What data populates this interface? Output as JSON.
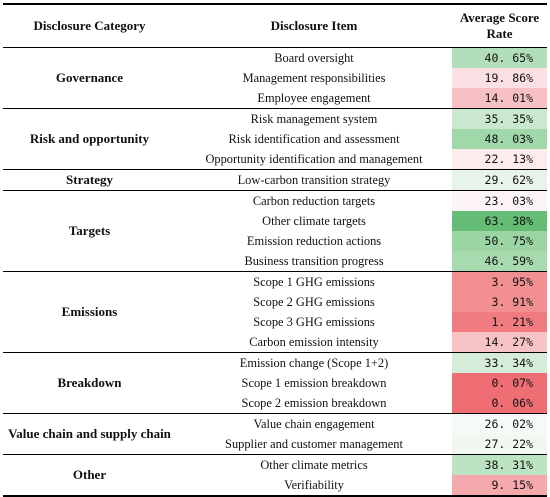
{
  "headers": {
    "category": "Disclosure Category",
    "item": "Disclosure Item",
    "score_line1": "Average Score",
    "score_line2": "Rate"
  },
  "rows": [
    {
      "category": "Governance",
      "item": "Board oversight",
      "score": "40. 65%",
      "color": "#b2dfb9"
    },
    {
      "category": "",
      "item": "Management responsibilities",
      "score": "19. 86%",
      "color": "#fbe1e3"
    },
    {
      "category": "",
      "item": "Employee engagement",
      "score": "14. 01%",
      "color": "#f7c1c4"
    },
    {
      "category": "Risk and opportunity",
      "item": "Risk management system",
      "score": "35. 35%",
      "color": "#c9e8ce"
    },
    {
      "category": "",
      "item": "Risk identification and assessment",
      "score": "48. 03%",
      "color": "#a1d8a9"
    },
    {
      "category": "",
      "item": "Opportunity identification and management",
      "score": "22. 13%",
      "color": "#fcecee"
    },
    {
      "category": "Strategy",
      "item": "Low-carbon transition strategy",
      "score": "29. 62%",
      "color": "#e8f4ea"
    },
    {
      "category": "Targets",
      "item": "Carbon reduction targets",
      "score": "23. 03%",
      "color": "#fdf4f5"
    },
    {
      "category": "",
      "item": "Other climate targets",
      "score": "63. 38%",
      "color": "#65bd75"
    },
    {
      "category": "",
      "item": "Emission reduction actions",
      "score": "50. 75%",
      "color": "#9ad5a3"
    },
    {
      "category": "",
      "item": "Business transition progress",
      "score": "46. 59%",
      "color": "#a7dbaf"
    },
    {
      "category": "Emissions",
      "item": "Scope 1 GHG emissions",
      "score": "3. 95%",
      "color": "#f28f93"
    },
    {
      "category": "",
      "item": "Scope 2 GHG emissions",
      "score": "3. 91%",
      "color": "#f28f93"
    },
    {
      "category": "",
      "item": "Scope 3 GHG emissions",
      "score": "1. 21%",
      "color": "#f07c81"
    },
    {
      "category": "",
      "item": "Carbon emission intensity",
      "score": "14. 27%",
      "color": "#f7c3c5"
    },
    {
      "category": "Breakdown",
      "item": "Emission change (Scope 1+2)",
      "score": "33. 34%",
      "color": "#d4ecd8"
    },
    {
      "category": "",
      "item": "Scope 1 emission breakdown",
      "score": "0. 07%",
      "color": "#ee6e74"
    },
    {
      "category": "",
      "item": "Scope 2 emission breakdown",
      "score": "0. 06%",
      "color": "#ee6e74"
    },
    {
      "category": "Value chain and supply chain",
      "item": "Value chain engagement",
      "score": "26. 02%",
      "color": "#f5faf6"
    },
    {
      "category": "",
      "item": "Supplier and customer management",
      "score": "27. 22%",
      "color": "#f1f8f2"
    },
    {
      "category": "Other",
      "item": "Other climate metrics",
      "score": "38. 31%",
      "color": "#bce3c2"
    },
    {
      "category": "",
      "item": "Verifiability",
      "score": "9. 15%",
      "color": "#f4a9ad"
    }
  ],
  "groups": [
    {
      "start": 0,
      "span": 3
    },
    {
      "start": 3,
      "span": 3
    },
    {
      "start": 6,
      "span": 1
    },
    {
      "start": 7,
      "span": 4
    },
    {
      "start": 11,
      "span": 4
    },
    {
      "start": 15,
      "span": 3
    },
    {
      "start": 18,
      "span": 2
    },
    {
      "start": 20,
      "span": 2
    }
  ]
}
